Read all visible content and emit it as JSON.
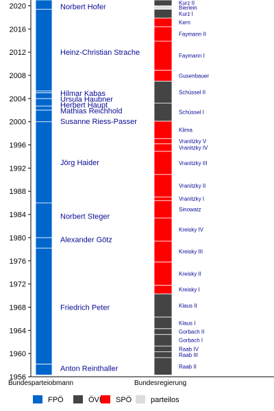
{
  "chart_data": {
    "type": "timeline",
    "ylim": [
      1956,
      2021
    ],
    "yticks": [
      1956,
      1960,
      1964,
      1968,
      1972,
      1976,
      1980,
      1984,
      1988,
      1992,
      1996,
      2000,
      2004,
      2008,
      2012,
      2016,
      2020
    ],
    "categories": [
      "Bundesparteiobmann",
      "Bundesregierung"
    ],
    "colors": {
      "FPÖ": "#0066cc",
      "ÖVP": "#444444",
      "SPÖ": "#ff0000",
      "parteilos": "#dddddd"
    },
    "fpo_leaders": [
      {
        "name": "Anton Reinthaller",
        "start": 1956.3,
        "end": 1958.2,
        "label_y": 1957.5
      },
      {
        "name": "Friedrich Peter",
        "start": 1958.2,
        "end": 1978.2,
        "label_y": 1968
      },
      {
        "name": "Alexander Götz",
        "start": 1978.2,
        "end": 1980.0,
        "label_y": 1979.7
      },
      {
        "name": "Norbert Steger",
        "start": 1980.0,
        "end": 1986.0,
        "label_y": 1983.7
      },
      {
        "name": "Jörg Haider",
        "start": 1986.0,
        "end": 2000.0,
        "label_y": 1993
      },
      {
        "name": "Susanne Riess-Passer",
        "start": 2000.0,
        "end": 2002.0,
        "label_y": 2000.1
      },
      {
        "name": "Mathias Reichhold",
        "start": 2002.0,
        "end": 2002.7,
        "label_y": 2001.9
      },
      {
        "name": "Herbert Haupt",
        "start": 2002.7,
        "end": 2004.0,
        "label_y": 2002.9
      },
      {
        "name": "Ursula Haubner",
        "start": 2004.0,
        "end": 2005.0,
        "label_y": 2003.9
      },
      {
        "name": "Hilmar Kabas",
        "start": 2005.0,
        "end": 2005.3,
        "label_y": 2004.9
      },
      {
        "name": "Heinz-Christian Strache",
        "start": 2005.3,
        "end": 2019.4,
        "label_y": 2012
      },
      {
        "name": "Norbert Hofer",
        "start": 2019.4,
        "end": 2021.0,
        "label_y": 2019.9
      }
    ],
    "governments": [
      {
        "name": "Raab II",
        "party": "ÖVP",
        "start": 1956.3,
        "end": 1959.3
      },
      {
        "name": "Raab III",
        "party": "ÖVP",
        "start": 1959.3,
        "end": 1960.3
      },
      {
        "name": "Raab IV",
        "party": "ÖVP",
        "start": 1960.3,
        "end": 1961.3
      },
      {
        "name": "Gorbach I",
        "party": "ÖVP",
        "start": 1961.3,
        "end": 1963.3
      },
      {
        "name": "Gorbach II",
        "party": "ÖVP",
        "start": 1963.3,
        "end": 1964.3
      },
      {
        "name": "Klaus I",
        "party": "ÖVP",
        "start": 1964.3,
        "end": 1966.3
      },
      {
        "name": "Klaus II",
        "party": "ÖVP",
        "start": 1966.3,
        "end": 1970.3
      },
      {
        "name": "Kreisky I",
        "party": "SPÖ",
        "start": 1970.3,
        "end": 1971.8
      },
      {
        "name": "Kreisky II",
        "party": "SPÖ",
        "start": 1971.8,
        "end": 1975.8
      },
      {
        "name": "Kreisky III",
        "party": "SPÖ",
        "start": 1975.8,
        "end": 1979.4
      },
      {
        "name": "Kreisky IV",
        "party": "SPÖ",
        "start": 1979.4,
        "end": 1983.4
      },
      {
        "name": "Sinowatz",
        "party": "SPÖ",
        "start": 1983.4,
        "end": 1986.4
      },
      {
        "name": "Vranitzky I",
        "party": "SPÖ",
        "start": 1986.4,
        "end": 1987.0
      },
      {
        "name": "Vranitzky II",
        "party": "SPÖ",
        "start": 1987.0,
        "end": 1990.9
      },
      {
        "name": "Vranitzky III",
        "party": "SPÖ",
        "start": 1990.9,
        "end": 1994.9
      },
      {
        "name": "Vranitzky IV",
        "party": "SPÖ",
        "start": 1994.9,
        "end": 1996.2
      },
      {
        "name": "Vranitzky V",
        "party": "SPÖ",
        "start": 1996.2,
        "end": 1997.1
      },
      {
        "name": "Klima",
        "party": "SPÖ",
        "start": 1997.1,
        "end": 2000.1
      },
      {
        "name": "Schüssel I",
        "party": "ÖVP",
        "start": 2000.1,
        "end": 2003.2
      },
      {
        "name": "Schüssel II",
        "party": "ÖVP",
        "start": 2003.2,
        "end": 2007.0
      },
      {
        "name": "Gusenbauer",
        "party": "SPÖ",
        "start": 2007.0,
        "end": 2008.9
      },
      {
        "name": "Faymann I",
        "party": "SPÖ",
        "start": 2008.9,
        "end": 2013.9
      },
      {
        "name": "Faymann II",
        "party": "SPÖ",
        "start": 2013.9,
        "end": 2016.4
      },
      {
        "name": "Kern",
        "party": "SPÖ",
        "start": 2016.4,
        "end": 2017.9
      },
      {
        "name": "Kurz I",
        "party": "ÖVP",
        "start": 2017.9,
        "end": 2019.4
      },
      {
        "name": "Bierlein",
        "party": "parteilos",
        "start": 2019.4,
        "end": 2020.0
      },
      {
        "name": "Kurz II",
        "party": "ÖVP",
        "start": 2020.0,
        "end": 2021.0
      }
    ],
    "legend": [
      {
        "party": "FPÖ",
        "color": "#0066cc"
      },
      {
        "party": "ÖVP",
        "color": "#444444"
      },
      {
        "party": "SPÖ",
        "color": "#ff0000"
      },
      {
        "party": "parteilos",
        "color": "#dddddd"
      }
    ]
  }
}
